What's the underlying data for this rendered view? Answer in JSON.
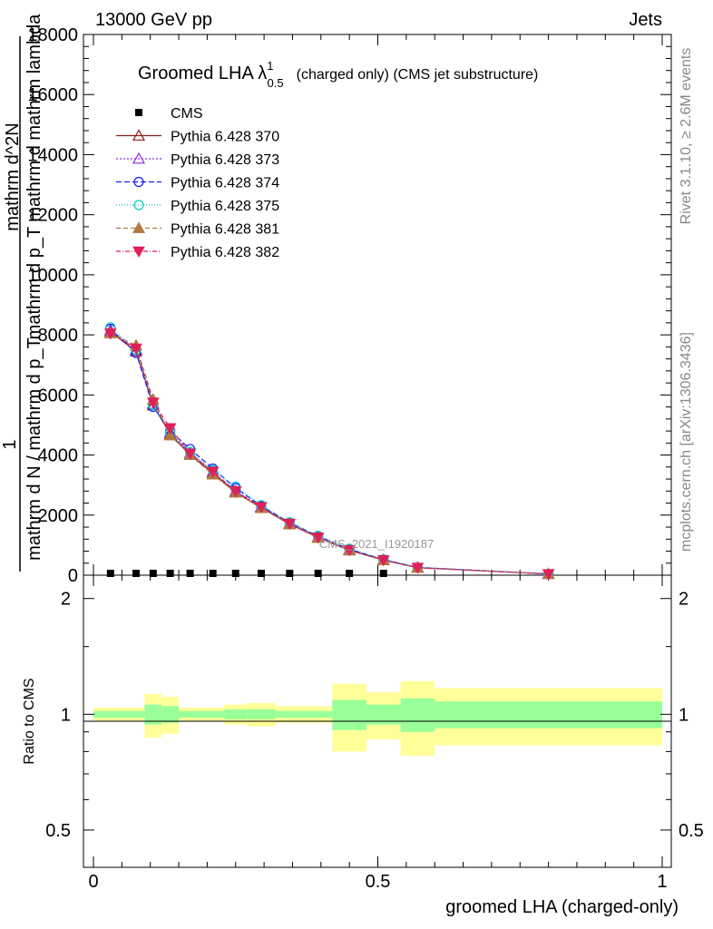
{
  "header": {
    "left": "13000 GeV pp",
    "right": "Jets"
  },
  "side": {
    "rivet": "Rivet 3.1.10, ≥ 2.6M events",
    "mcplots": "mcplots.cern.ch [arXiv:1306.3436]"
  },
  "watermark": "CMS_2021_I1920187",
  "chart_data": {
    "type": "line",
    "title": "Groomed LHA λ",
    "title_sup": "1",
    "title_sub": "0.5",
    "title_suffix": "(charged only) (CMS jet substructure)",
    "xlabel": "groomed LHA (charged-only)",
    "ylabel": "1 / mathrm d N / mathrm d p_T  mathrm d^2N / mathrm d p_T mathrm d mathrm lambda",
    "ylabel_parts": {
      "one": "1",
      "den": "mathrm d N / mathrm d p_T",
      "num": "mathrm d^2N",
      "den2": "mathrm d p_T mathrm d mathrm lambda"
    },
    "ratio_ylabel": "Ratio to CMS",
    "xlim": [
      0,
      1
    ],
    "ylim": [
      0,
      18000
    ],
    "ratio_ylim": [
      0.4,
      2.3
    ],
    "x_ticks": [
      0,
      0.5,
      1
    ],
    "x_tick_labels": [
      "0",
      "0.5",
      "1"
    ],
    "y_ticks": [
      0,
      2000,
      4000,
      6000,
      8000,
      10000,
      12000,
      14000,
      16000,
      18000
    ],
    "y_tick_labels": [
      "0",
      "2000",
      "4000",
      "6000",
      "8000",
      "10000",
      "12000",
      "14000",
      "16000",
      "18000"
    ],
    "ratio_ticks": [
      0.5,
      1,
      2
    ],
    "ratio_tick_labels": [
      "0.5",
      "1",
      "2"
    ],
    "legend_position": "top-left",
    "x": [
      0.03,
      0.075,
      0.105,
      0.135,
      0.17,
      0.21,
      0.25,
      0.295,
      0.345,
      0.395,
      0.45,
      0.51,
      0.57,
      0.8
    ],
    "series": [
      {
        "name": "CMS",
        "color": "#000000",
        "marker": "square",
        "dash": "",
        "values": [
          60,
          60,
          60,
          60,
          60,
          60,
          60,
          60,
          60,
          60,
          60,
          60,
          0,
          0
        ]
      },
      {
        "name": "Pythia 6.428 370",
        "color": "#8b1a1a",
        "marker": "triangle-open",
        "dash": "",
        "values": [
          8100,
          7450,
          5650,
          4700,
          4000,
          3400,
          2750,
          2250,
          1700,
          1250,
          830,
          500,
          250,
          40
        ]
      },
      {
        "name": "Pythia 6.428 373",
        "color": "#8a2be2",
        "marker": "triangle-open",
        "dash": "2,2",
        "values": [
          8150,
          7500,
          5700,
          4750,
          4050,
          3450,
          2800,
          2280,
          1720,
          1270,
          850,
          510,
          255,
          40
        ]
      },
      {
        "name": "Pythia 6.428 374",
        "color": "#1a1aff",
        "marker": "circle-open",
        "dash": "6,3",
        "values": [
          8200,
          7400,
          5600,
          4800,
          4200,
          3550,
          2900,
          2300,
          1750,
          1300,
          870,
          520,
          260,
          40
        ]
      },
      {
        "name": "Pythia 6.428 375",
        "color": "#00ccbb",
        "marker": "circle-open",
        "dash": "1,2",
        "values": [
          8250,
          7500,
          5650,
          4750,
          4100,
          3500,
          2950,
          2330,
          1760,
          1310,
          880,
          530,
          265,
          40
        ]
      },
      {
        "name": "Pythia 6.428 381",
        "color": "#b07a40",
        "marker": "triangle-filled",
        "dash": "5,3",
        "values": [
          8050,
          7650,
          5850,
          4650,
          4000,
          3350,
          2750,
          2230,
          1690,
          1240,
          820,
          495,
          245,
          40
        ]
      },
      {
        "name": "Pythia 6.428 382",
        "color": "#e0205a",
        "marker": "triangle-down-filled",
        "dash": "5,2,1,2",
        "values": [
          8050,
          7550,
          5750,
          4900,
          4050,
          3450,
          2800,
          2270,
          1720,
          1260,
          840,
          505,
          250,
          40
        ]
      }
    ],
    "ratio_bands": {
      "edges": [
        0,
        0.06,
        0.09,
        0.12,
        0.15,
        0.19,
        0.23,
        0.27,
        0.32,
        0.37,
        0.42,
        0.48,
        0.54,
        0.6,
        1.0
      ],
      "inner": [
        [
          0.98,
          1.02
        ],
        [
          0.98,
          1.02
        ],
        [
          0.94,
          1.06
        ],
        [
          0.95,
          1.05
        ],
        [
          0.98,
          1.02
        ],
        [
          0.98,
          1.02
        ],
        [
          0.97,
          1.03
        ],
        [
          0.97,
          1.03
        ],
        [
          0.98,
          1.02
        ],
        [
          0.98,
          1.02
        ],
        [
          0.91,
          1.09
        ],
        [
          0.94,
          1.06
        ],
        [
          0.9,
          1.1
        ],
        [
          0.92,
          1.08
        ]
      ],
      "outer": [
        [
          0.96,
          1.04
        ],
        [
          0.96,
          1.04
        ],
        [
          0.87,
          1.13
        ],
        [
          0.89,
          1.11
        ],
        [
          0.96,
          1.04
        ],
        [
          0.96,
          1.04
        ],
        [
          0.94,
          1.06
        ],
        [
          0.93,
          1.07
        ],
        [
          0.95,
          1.05
        ],
        [
          0.95,
          1.05
        ],
        [
          0.8,
          1.2
        ],
        [
          0.86,
          1.14
        ],
        [
          0.78,
          1.22
        ],
        [
          0.83,
          1.17
        ]
      ],
      "inner_color": "#99ff99",
      "outer_color": "#ffff99"
    }
  }
}
